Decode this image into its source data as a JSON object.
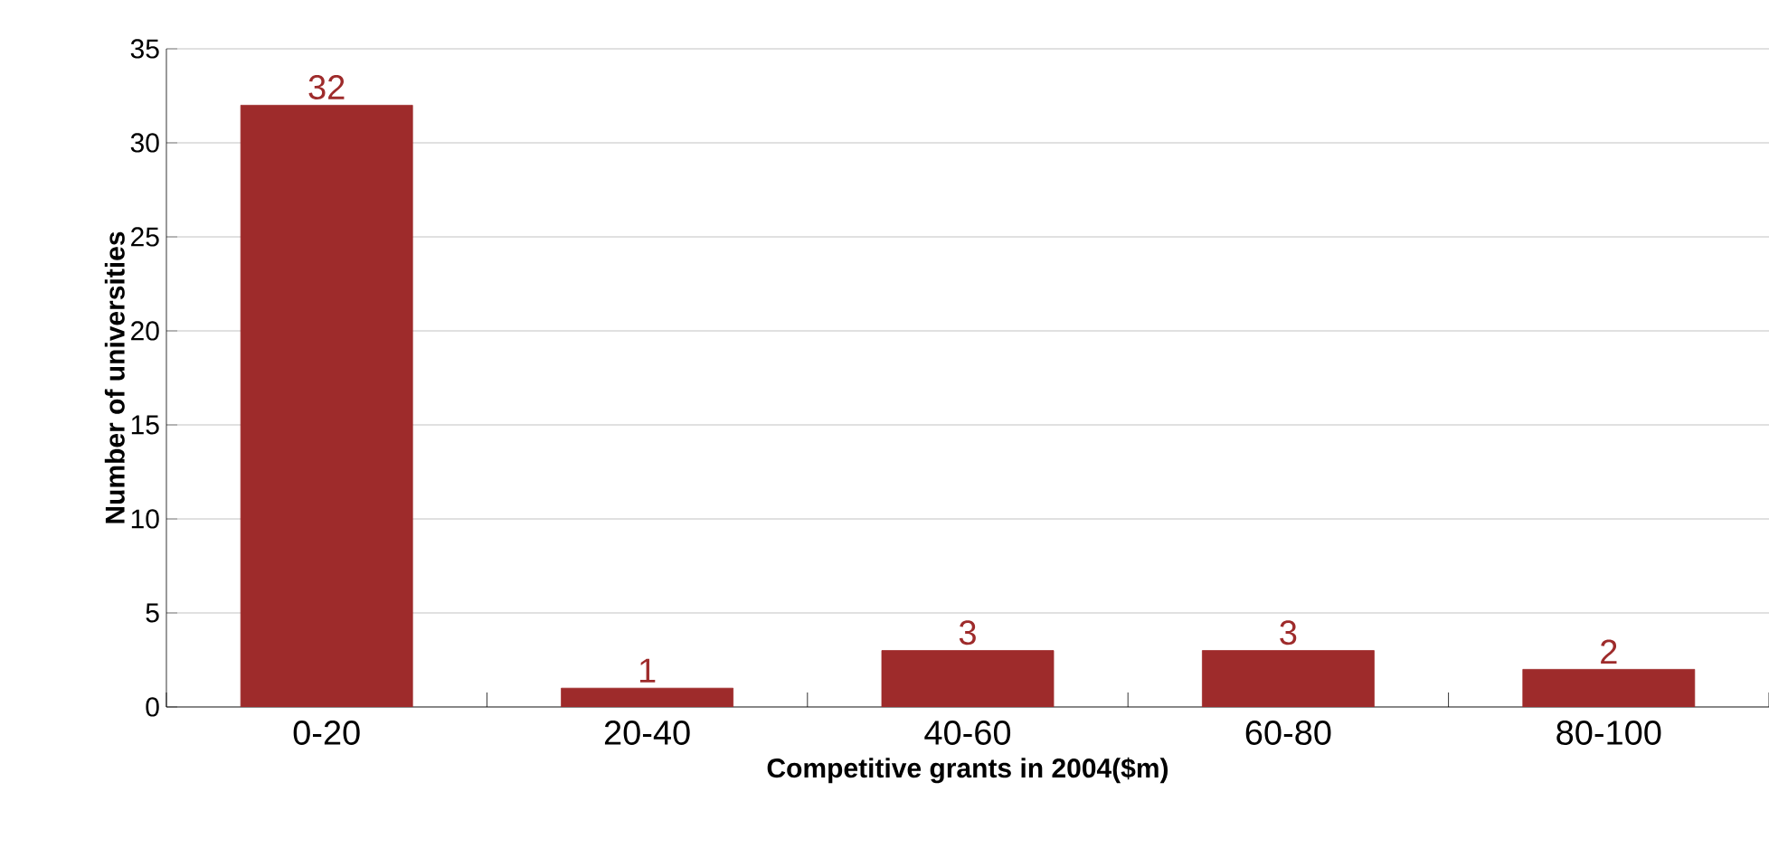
{
  "chart_data": {
    "type": "bar",
    "xlabel": "Competitive grants in 2004($m)",
    "ylabel": "Number of universities",
    "categories": [
      "0-20",
      "20-40",
      "40-60",
      "60-80",
      "80-100"
    ],
    "values": [
      32,
      1,
      3,
      3,
      2
    ],
    "color": "#9e2b2b",
    "ylim": [
      0,
      35
    ],
    "yticks": [
      0,
      5,
      10,
      15,
      20,
      25,
      30,
      35
    ],
    "grid": "y",
    "data_labels": true
  }
}
